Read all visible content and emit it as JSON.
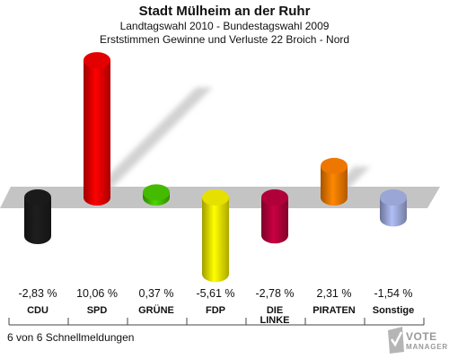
{
  "header": {
    "title": "Stadt Mülheim an der Ruhr",
    "subtitle1": "Landtagswahl 2010 - Bundestagswahl 2009",
    "subtitle2": "Erststimmen Gewinne und Verluste 22 Broich - Nord"
  },
  "footer": {
    "note": "6 von 6 Schnellmeldungen"
  },
  "logo": {
    "line1": "VOTE",
    "line2": "MANAGER"
  },
  "chart_data": {
    "type": "bar",
    "title": "Stadt Mülheim an der Ruhr",
    "categories": [
      "CDU",
      "SPD",
      "GRÜNE",
      "FDP",
      "DIE LINKE",
      "PIRATEN",
      "Sonstige"
    ],
    "category_lines": [
      [
        "CDU"
      ],
      [
        "SPD"
      ],
      [
        "GRÜNE"
      ],
      [
        "FDP"
      ],
      [
        "DIE",
        "LINKE"
      ],
      [
        "PIRATEN"
      ],
      [
        "Sonstige"
      ]
    ],
    "values": [
      -2.83,
      10.06,
      0.37,
      -5.61,
      -2.78,
      2.31,
      -1.54
    ],
    "value_labels": [
      "-2,83 %",
      "10,06 %",
      "0,37 %",
      "-5,61 %",
      "-2,78 %",
      "2,31 %",
      "-1,54 %"
    ],
    "colors": [
      "#1a1a1a",
      "#e30000",
      "#44bb00",
      "#e6e000",
      "#b0003a",
      "#ee7700",
      "#9aa6d6"
    ],
    "unit": "%",
    "ylim": [
      -6,
      11
    ],
    "grid": false
  }
}
